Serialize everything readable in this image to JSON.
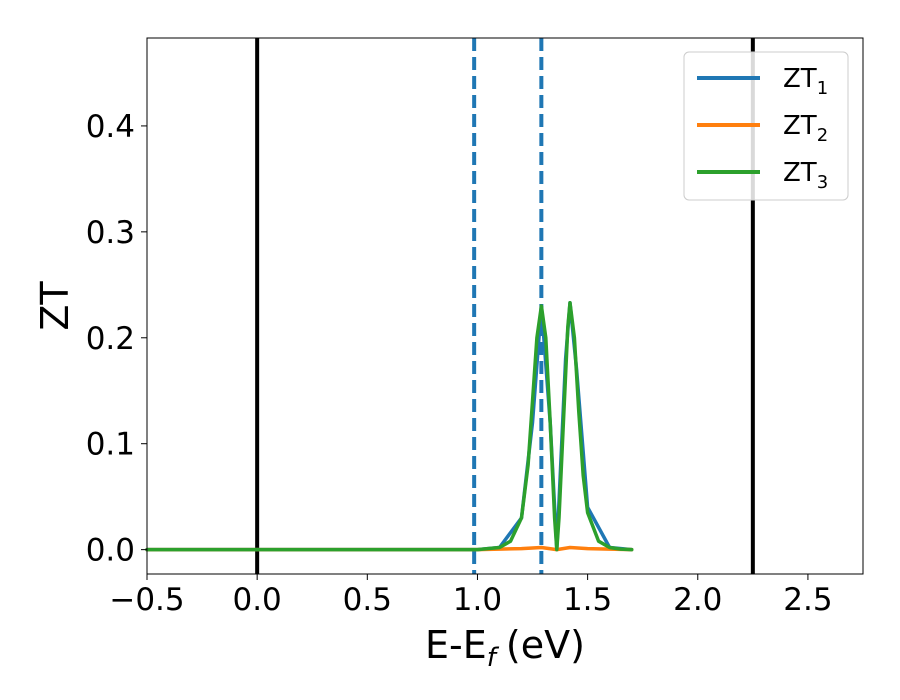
{
  "chart_data": {
    "type": "line",
    "xlabel": "E-E",
    "xlabel_sub": "f",
    "xlabel_unit": "(eV)",
    "ylabel": "ZT",
    "xlim": [
      -0.5,
      2.75
    ],
    "ylim": [
      -0.023,
      0.483
    ],
    "xticks": [
      -0.5,
      0.0,
      0.5,
      1.0,
      1.5,
      2.0,
      2.5
    ],
    "xtick_labels": [
      "−0.5",
      "0.0",
      "0.5",
      "1.0",
      "1.5",
      "2.0",
      "2.5"
    ],
    "yticks": [
      0.0,
      0.1,
      0.2,
      0.3,
      0.4
    ],
    "ytick_labels": [
      "0.0",
      "0.1",
      "0.2",
      "0.3",
      "0.4"
    ],
    "grid": false,
    "legend_position": "top-right",
    "vlines": [
      {
        "x": 0.0,
        "color": "#000000",
        "style": "solid"
      },
      {
        "x": 2.25,
        "color": "#000000",
        "style": "solid"
      },
      {
        "x": 0.985,
        "color": "#1f77b4",
        "style": "dashed"
      },
      {
        "x": 1.29,
        "color": "#1f77b4",
        "style": "dashed"
      }
    ],
    "series": [
      {
        "name": "ZT",
        "sub": "1",
        "color": "#1f77b4",
        "x": [
          -0.5,
          0.0,
          0.5,
          1.0,
          1.1,
          1.2,
          1.25,
          1.29,
          1.33,
          1.36,
          1.4,
          1.42,
          1.45,
          1.5,
          1.6,
          1.7
        ],
        "y": [
          0,
          0,
          0,
          0,
          0.002,
          0.03,
          0.12,
          0.23,
          0.12,
          0.0,
          0.18,
          0.233,
          0.17,
          0.04,
          0.002,
          0
        ]
      },
      {
        "name": "ZT",
        "sub": "2",
        "color": "#ff7f0e",
        "x": [
          -0.5,
          0.0,
          0.5,
          1.0,
          1.1,
          1.2,
          1.29,
          1.36,
          1.42,
          1.5,
          1.6,
          1.7
        ],
        "y": [
          0,
          0,
          0,
          0,
          0.0005,
          0.001,
          0.002,
          0.0,
          0.002,
          0.001,
          0.0005,
          0
        ]
      },
      {
        "name": "ZT",
        "sub": "3",
        "color": "#2ca02c",
        "x": [
          -0.5,
          0.0,
          0.5,
          1.0,
          1.1,
          1.15,
          1.2,
          1.23,
          1.25,
          1.27,
          1.29,
          1.31,
          1.33,
          1.35,
          1.36,
          1.37,
          1.39,
          1.41,
          1.42,
          1.44,
          1.46,
          1.48,
          1.5,
          1.55,
          1.6,
          1.65,
          1.7
        ],
        "y": [
          0,
          0,
          0,
          0,
          0.002,
          0.008,
          0.03,
          0.08,
          0.14,
          0.2,
          0.23,
          0.2,
          0.12,
          0.03,
          0.0,
          0.03,
          0.12,
          0.21,
          0.233,
          0.2,
          0.13,
          0.07,
          0.035,
          0.008,
          0.002,
          0.0005,
          0
        ]
      }
    ]
  }
}
